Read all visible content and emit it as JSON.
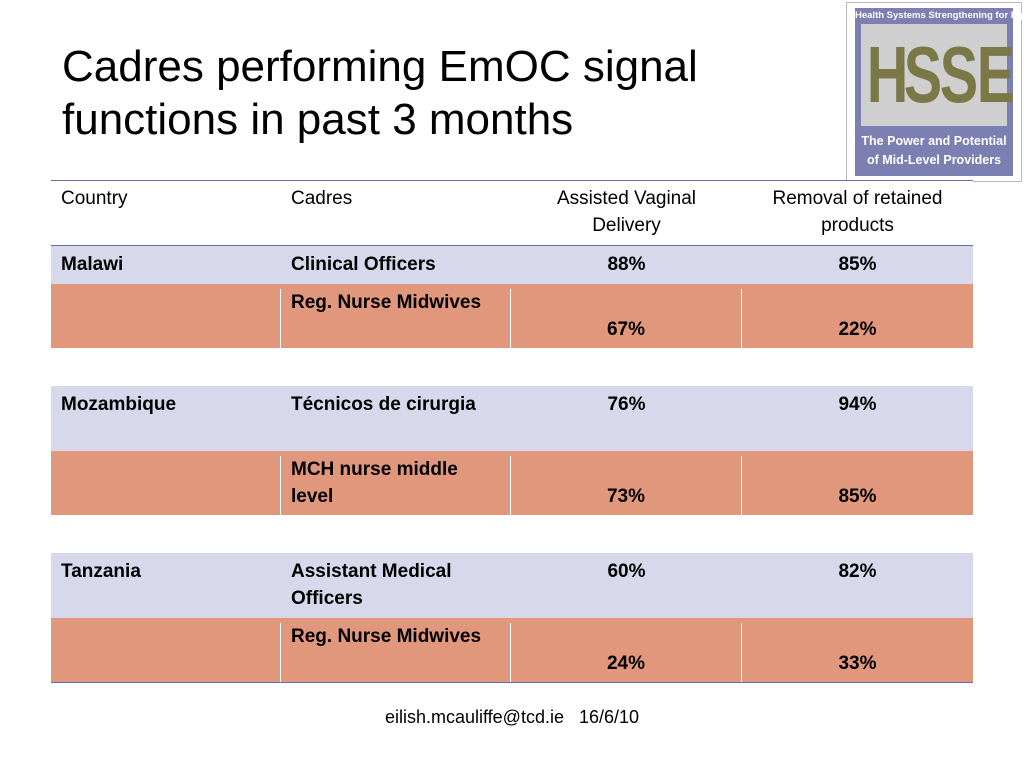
{
  "slide": {
    "title_line1": "Cadres performing EmOC signal",
    "title_line2": "functions in past 3 months"
  },
  "logo": {
    "top_text": "Health Systems Strengthening for Equity",
    "letters": [
      "H",
      "S",
      "S",
      "E"
    ],
    "sub_line1": "The Power and Potential",
    "sub_line2": "of Mid-Level Providers"
  },
  "table": {
    "headers": {
      "country": "Country",
      "cadres": "Cadres",
      "assisted_vaginal_delivery": "Assisted Vaginal Delivery",
      "removal_of_retained_products": "Removal of retained products"
    },
    "groups": [
      {
        "country": "Malawi",
        "rows": [
          {
            "cadre": "Clinical Officers",
            "avd": "88%",
            "rrp": "85%"
          },
          {
            "cadre": "Reg. Nurse Midwives",
            "avd": "67%",
            "rrp": "22%"
          }
        ]
      },
      {
        "country": "Mozambique",
        "rows": [
          {
            "cadre": "Técnicos de cirurgia",
            "avd": "76%",
            "rrp": "94%"
          },
          {
            "cadre": "MCH nurse middle level",
            "avd": "73%",
            "rrp": "85%"
          }
        ]
      },
      {
        "country": "Tanzania",
        "rows": [
          {
            "cadre": "Assistant Medical Officers",
            "avd": "60%",
            "rrp": "82%"
          },
          {
            "cadre": "Reg. Nurse Midwives",
            "avd": "24%",
            "rrp": "33%"
          }
        ]
      }
    ]
  },
  "footer": {
    "email": "eilish.mcauliffe@tcd.ie",
    "date": "16/6/10"
  },
  "colors": {
    "row_lavender": "#d8d8ec",
    "row_salmon": "#e0977c",
    "rule": "#6e6aa8",
    "logo_bg": "#7b7fb2",
    "logo_letters": "#7b7848"
  }
}
